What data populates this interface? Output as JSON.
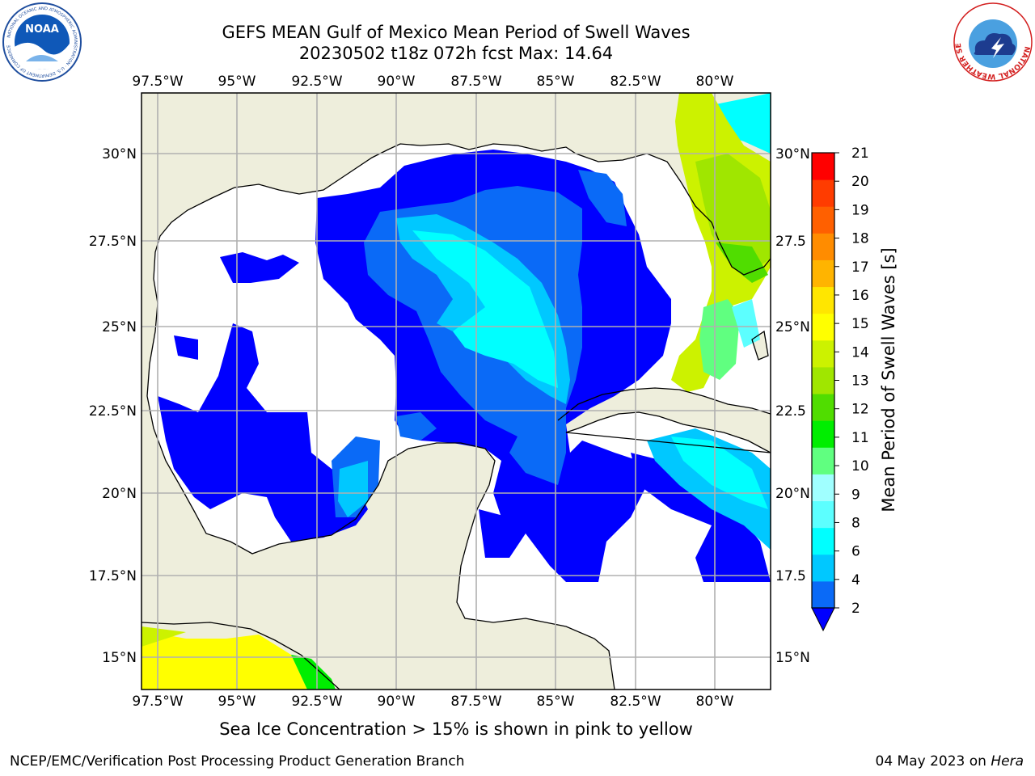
{
  "header": {
    "title_line1": "GEFS MEAN Gulf of Mexico Mean Period of Swell Waves",
    "title_line2": "20230502 t18z 072h fcst   Max: 14.64"
  },
  "logos": {
    "left": "NOAA",
    "left_ring_text": "NATIONAL OCEANIC AND ATMOSPHERIC ADMINISTRATION · U.S. DEPARTMENT OF COMMERCE",
    "right_ring_text": "NATIONAL WEATHER SERVICE"
  },
  "map": {
    "lon_ticks": [
      "97.5°W",
      "95°W",
      "92.5°W",
      "90°W",
      "87.5°W",
      "85°W",
      "82.5°W",
      "80°W"
    ],
    "lat_ticks": [
      "30°N",
      "27.5°N",
      "25°N",
      "22.5°N",
      "20°N",
      "17.5°N",
      "15°N"
    ],
    "lat_ticks_right": [
      "30°N",
      "27.5",
      "25°N",
      "22.5",
      "20°N",
      "17.5",
      "15°N"
    ],
    "extent": {
      "lon_min": -98,
      "lon_max": -78.3,
      "lat_min": 14,
      "lat_max": 31.7
    },
    "land_color": "#eeeedc",
    "coast_color": "#000000",
    "grid_color": "#b0b0b0"
  },
  "colorbar": {
    "label": "Mean Period of Swell Waves [s]",
    "ticks": [
      "21",
      "20",
      "19",
      "18",
      "17",
      "16",
      "15",
      "14",
      "13",
      "12",
      "11",
      "10",
      "9",
      "8",
      "6",
      "4",
      "2"
    ],
    "colors_bottom_to_top": [
      "#0a6af7",
      "#00c8ff",
      "#00ffff",
      "#5cffff",
      "#a0ffff",
      "#60ff80",
      "#00ee00",
      "#50dd00",
      "#a0e600",
      "#ccf200",
      "#ffff00",
      "#ffe600",
      "#ffb400",
      "#ff8c00",
      "#ff6000",
      "#ff3c00",
      "#ff0000"
    ],
    "extend_color": "#0000ff"
  },
  "footer": {
    "note": "Sea Ice Concentration > 15% is shown in pink to yellow",
    "credit_left": "NCEP/EMC/Verification Post Processing Product Generation Branch",
    "credit_right_date": "04 May 2023 on ",
    "credit_right_machine": "Hera"
  }
}
